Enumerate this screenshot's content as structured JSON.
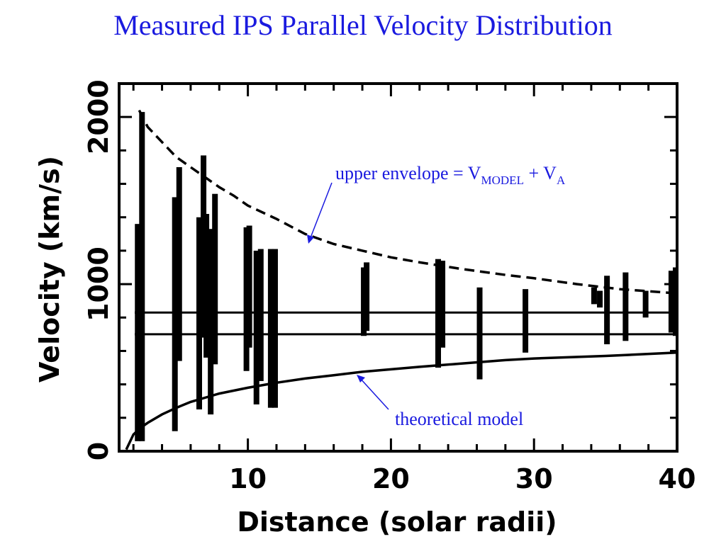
{
  "title": "Measured IPS Parallel Velocity Distribution",
  "chart_data": {
    "type": "scatter",
    "title": "Measured IPS Parallel Velocity Distribution",
    "xlabel": "Distance (solar radii)",
    "ylabel": "Velocity (km/s)",
    "xlim": [
      1,
      40
    ],
    "ylim": [
      0,
      2200
    ],
    "xticks": [
      10,
      20,
      30,
      40
    ],
    "yticks": [
      0,
      1000,
      2000
    ],
    "grid": false,
    "horizontal_lines": [
      830,
      700
    ],
    "series": [
      {
        "kind": "vertical-range-bars",
        "bars": [
          {
            "x": 2.3,
            "ymin": 60,
            "ymax": 1360
          },
          {
            "x": 2.6,
            "ymin": 60,
            "ymax": 2030
          },
          {
            "x": 4.9,
            "ymin": 120,
            "ymax": 1520
          },
          {
            "x": 5.2,
            "ymin": 540,
            "ymax": 1700
          },
          {
            "x": 6.6,
            "ymin": 250,
            "ymax": 1400
          },
          {
            "x": 6.9,
            "ymin": 680,
            "ymax": 1770
          },
          {
            "x": 7.1,
            "ymin": 560,
            "ymax": 1420
          },
          {
            "x": 7.4,
            "ymin": 220,
            "ymax": 1330
          },
          {
            "x": 7.7,
            "ymin": 520,
            "ymax": 1540
          },
          {
            "x": 9.9,
            "ymin": 480,
            "ymax": 1340
          },
          {
            "x": 10.1,
            "ymin": 620,
            "ymax": 1350
          },
          {
            "x": 10.6,
            "ymin": 280,
            "ymax": 1200
          },
          {
            "x": 10.9,
            "ymin": 420,
            "ymax": 1210
          },
          {
            "x": 11.6,
            "ymin": 260,
            "ymax": 1210
          },
          {
            "x": 11.9,
            "ymin": 260,
            "ymax": 1210
          },
          {
            "x": 18.1,
            "ymin": 690,
            "ymax": 1100
          },
          {
            "x": 18.3,
            "ymin": 720,
            "ymax": 1130
          },
          {
            "x": 23.3,
            "ymin": 500,
            "ymax": 1150
          },
          {
            "x": 23.6,
            "ymin": 620,
            "ymax": 1140
          },
          {
            "x": 26.2,
            "ymin": 430,
            "ymax": 980
          },
          {
            "x": 29.4,
            "ymin": 590,
            "ymax": 970
          },
          {
            "x": 34.2,
            "ymin": 880,
            "ymax": 980
          },
          {
            "x": 34.6,
            "ymin": 860,
            "ymax": 960
          },
          {
            "x": 35.1,
            "ymin": 640,
            "ymax": 1050
          },
          {
            "x": 36.4,
            "ymin": 660,
            "ymax": 1070
          },
          {
            "x": 37.8,
            "ymin": 800,
            "ymax": 960
          },
          {
            "x": 39.6,
            "ymin": 710,
            "ymax": 1080
          },
          {
            "x": 39.9,
            "ymin": 690,
            "ymax": 1100
          }
        ]
      },
      {
        "name": "upper envelope",
        "style": "dashed",
        "x": [
          2.4,
          3,
          4,
          5,
          6,
          7,
          8,
          9,
          10,
          12,
          14,
          16,
          18,
          20,
          22,
          25,
          28,
          30,
          33,
          36,
          40
        ],
        "y": [
          2040,
          1940,
          1850,
          1760,
          1700,
          1640,
          1580,
          1530,
          1470,
          1390,
          1300,
          1240,
          1200,
          1160,
          1130,
          1090,
          1055,
          1035,
          1000,
          970,
          945
        ]
      },
      {
        "name": "theoretical model",
        "style": "solid",
        "x": [
          1.5,
          2,
          2.5,
          3,
          4,
          5,
          6,
          7,
          8,
          10,
          12,
          14,
          16,
          18,
          20,
          22,
          25,
          28,
          30,
          35,
          40
        ],
        "y": [
          10,
          100,
          140,
          170,
          220,
          260,
          295,
          320,
          345,
          380,
          410,
          435,
          455,
          475,
          490,
          505,
          525,
          545,
          555,
          570,
          590
        ]
      }
    ],
    "annotations": [
      {
        "id": "upper",
        "prefix": "upper envelope = V",
        "sub1": "MODEL",
        "mid": " + V",
        "sub2": "A"
      },
      {
        "id": "model",
        "text": "theoretical model"
      }
    ],
    "annotation_color": "#1a1adf"
  }
}
